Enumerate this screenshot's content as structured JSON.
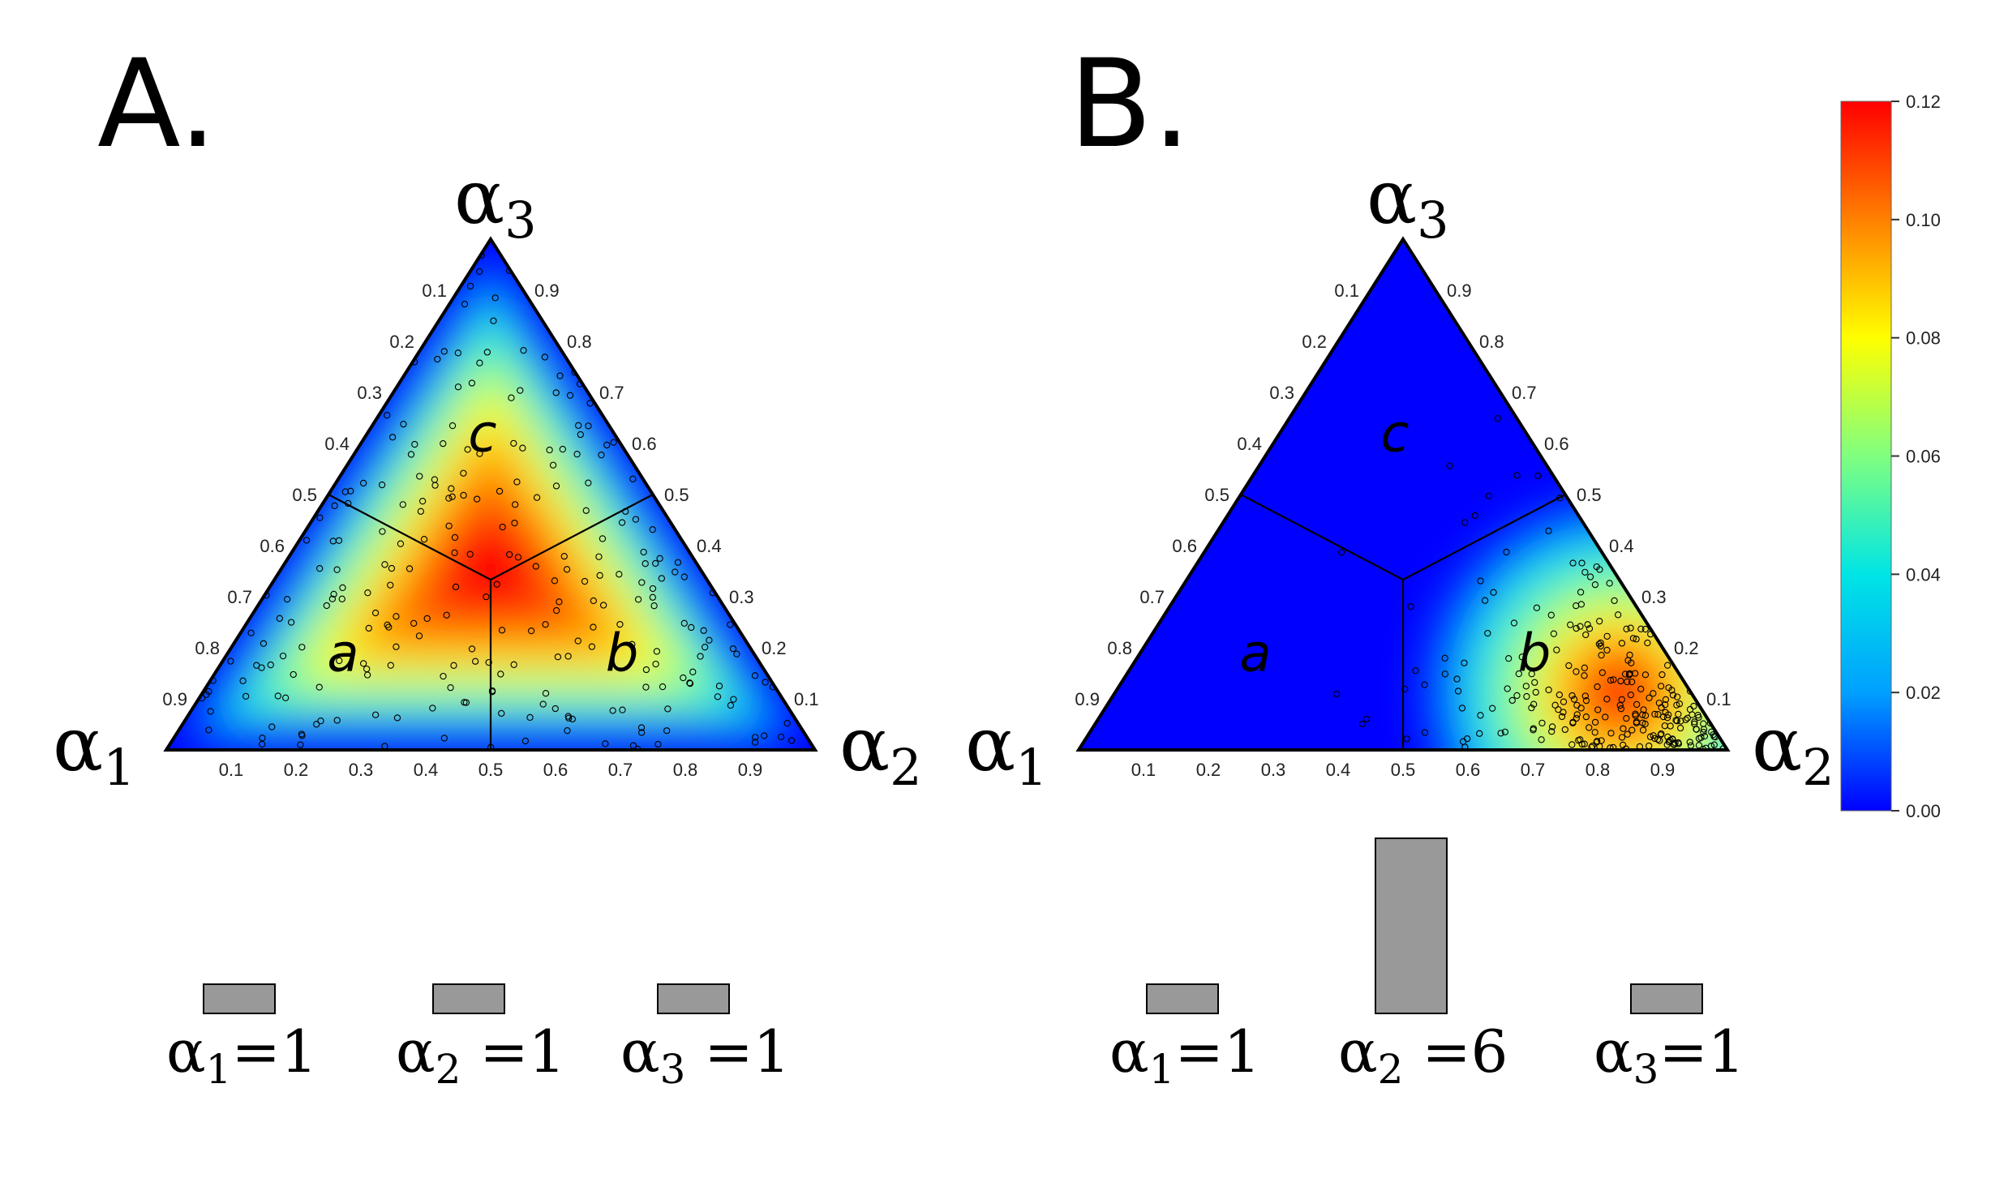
{
  "panels": [
    {
      "letter": "A.",
      "vertex_labels": [
        {
          "symbol": "α",
          "sub": "1"
        },
        {
          "symbol": "α",
          "sub": "2"
        },
        {
          "symbol": "α",
          "sub": "3"
        }
      ],
      "region_labels": [
        "a",
        "b",
        "c"
      ],
      "bars": [
        {
          "label": "α",
          "sub": "1",
          "eq": "=1",
          "value": 1
        },
        {
          "label": "α",
          "sub": "2",
          "eq": " =1",
          "value": 1
        },
        {
          "label": "α",
          "sub": "3",
          "eq": " =1",
          "value": 1
        }
      ],
      "density_mode": "Dirichlet(1,1,1) sample density, peak at center",
      "sample_center": [
        0.33,
        0.33,
        0.34
      ]
    },
    {
      "letter": "B.",
      "vertex_labels": [
        {
          "symbol": "α",
          "sub": "1"
        },
        {
          "symbol": "α",
          "sub": "2"
        },
        {
          "symbol": "α",
          "sub": "3"
        }
      ],
      "region_labels": [
        "a",
        "b",
        "c"
      ],
      "bars": [
        {
          "label": "α",
          "sub": "1",
          "eq": "=1",
          "value": 1
        },
        {
          "label": "α",
          "sub": "2",
          "eq": " =6",
          "value": 6
        },
        {
          "label": "α",
          "sub": "3",
          "eq": "=1",
          "value": 1
        }
      ],
      "density_mode": "Dirichlet(1,6,1) sample density, peak near α2 vertex",
      "sample_center": [
        0.12,
        0.76,
        0.12
      ]
    }
  ],
  "axis_ticks": [
    "0.1",
    "0.2",
    "0.3",
    "0.4",
    "0.5",
    "0.6",
    "0.7",
    "0.8",
    "0.9"
  ],
  "colorbar": {
    "ticks": [
      "0.00",
      "0.02",
      "0.04",
      "0.06",
      "0.08",
      "0.10",
      "0.12"
    ],
    "min": 0.0,
    "max": 0.12,
    "colors": [
      "#0000ff",
      "#00a0ff",
      "#00e5e5",
      "#80ff80",
      "#ffff00",
      "#ff8000",
      "#ff0000"
    ]
  },
  "chart_data": [
    {
      "type": "heatmap",
      "title": "A.",
      "xlabel": "",
      "ylabel": "",
      "concentration": {
        "α1": 1,
        "α2": 1,
        "α3": 1
      },
      "ternary_axis_ticks": [
        0.1,
        0.2,
        0.3,
        0.4,
        0.5,
        0.6,
        0.7,
        0.8,
        0.9
      ],
      "color_range": [
        0.0,
        0.12
      ],
      "regions": [
        "a",
        "b",
        "c"
      ]
    },
    {
      "type": "heatmap",
      "title": "B.",
      "xlabel": "",
      "ylabel": "",
      "concentration": {
        "α1": 1,
        "α2": 6,
        "α3": 1
      },
      "ternary_axis_ticks": [
        0.1,
        0.2,
        0.3,
        0.4,
        0.5,
        0.6,
        0.7,
        0.8,
        0.9
      ],
      "color_range": [
        0.0,
        0.12
      ],
      "regions": [
        "a",
        "b",
        "c"
      ]
    }
  ]
}
